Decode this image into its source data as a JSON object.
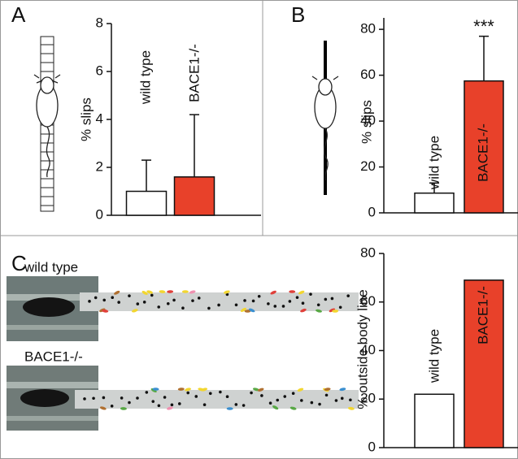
{
  "chart_data": [
    {
      "type": "bar",
      "panel_label": "A",
      "ylabel": "% slips",
      "categories": [
        "wild type",
        "BACE1-/-"
      ],
      "values": [
        1.0,
        1.6
      ],
      "errors": [
        1.3,
        2.6
      ],
      "colors": [
        "#ffffff",
        "#e8412a"
      ],
      "label_colors": [
        "#111111",
        "#e8412a"
      ],
      "ylim": [
        0,
        8
      ],
      "yticks": [
        0,
        2,
        4,
        6,
        8
      ]
    },
    {
      "type": "bar",
      "panel_label": "B",
      "ylabel": "% slips",
      "annotation": "***",
      "categories": [
        "wild type",
        "BACE1-/-"
      ],
      "values": [
        8.6,
        57.5
      ],
      "errors": [
        4.4,
        19.5
      ],
      "colors": [
        "#ffffff",
        "#e8412a"
      ],
      "label_colors": [
        "#111111",
        "#111111"
      ],
      "ylim": [
        0,
        85
      ],
      "yticks": [
        0,
        20,
        40,
        60,
        80
      ]
    },
    {
      "type": "bar",
      "panel_label": "C",
      "ylabel": "% outside body line",
      "photo_labels": [
        "wild type",
        "BACE1-/-"
      ],
      "categories": [
        "wild type",
        "BACE1-/-"
      ],
      "values": [
        22,
        69
      ],
      "colors": [
        "#ffffff",
        "#e8412a"
      ],
      "label_colors": [
        "#111111",
        "#111111"
      ],
      "ylim": [
        0,
        80
      ],
      "yticks": [
        0,
        20,
        40,
        60,
        80
      ]
    }
  ]
}
